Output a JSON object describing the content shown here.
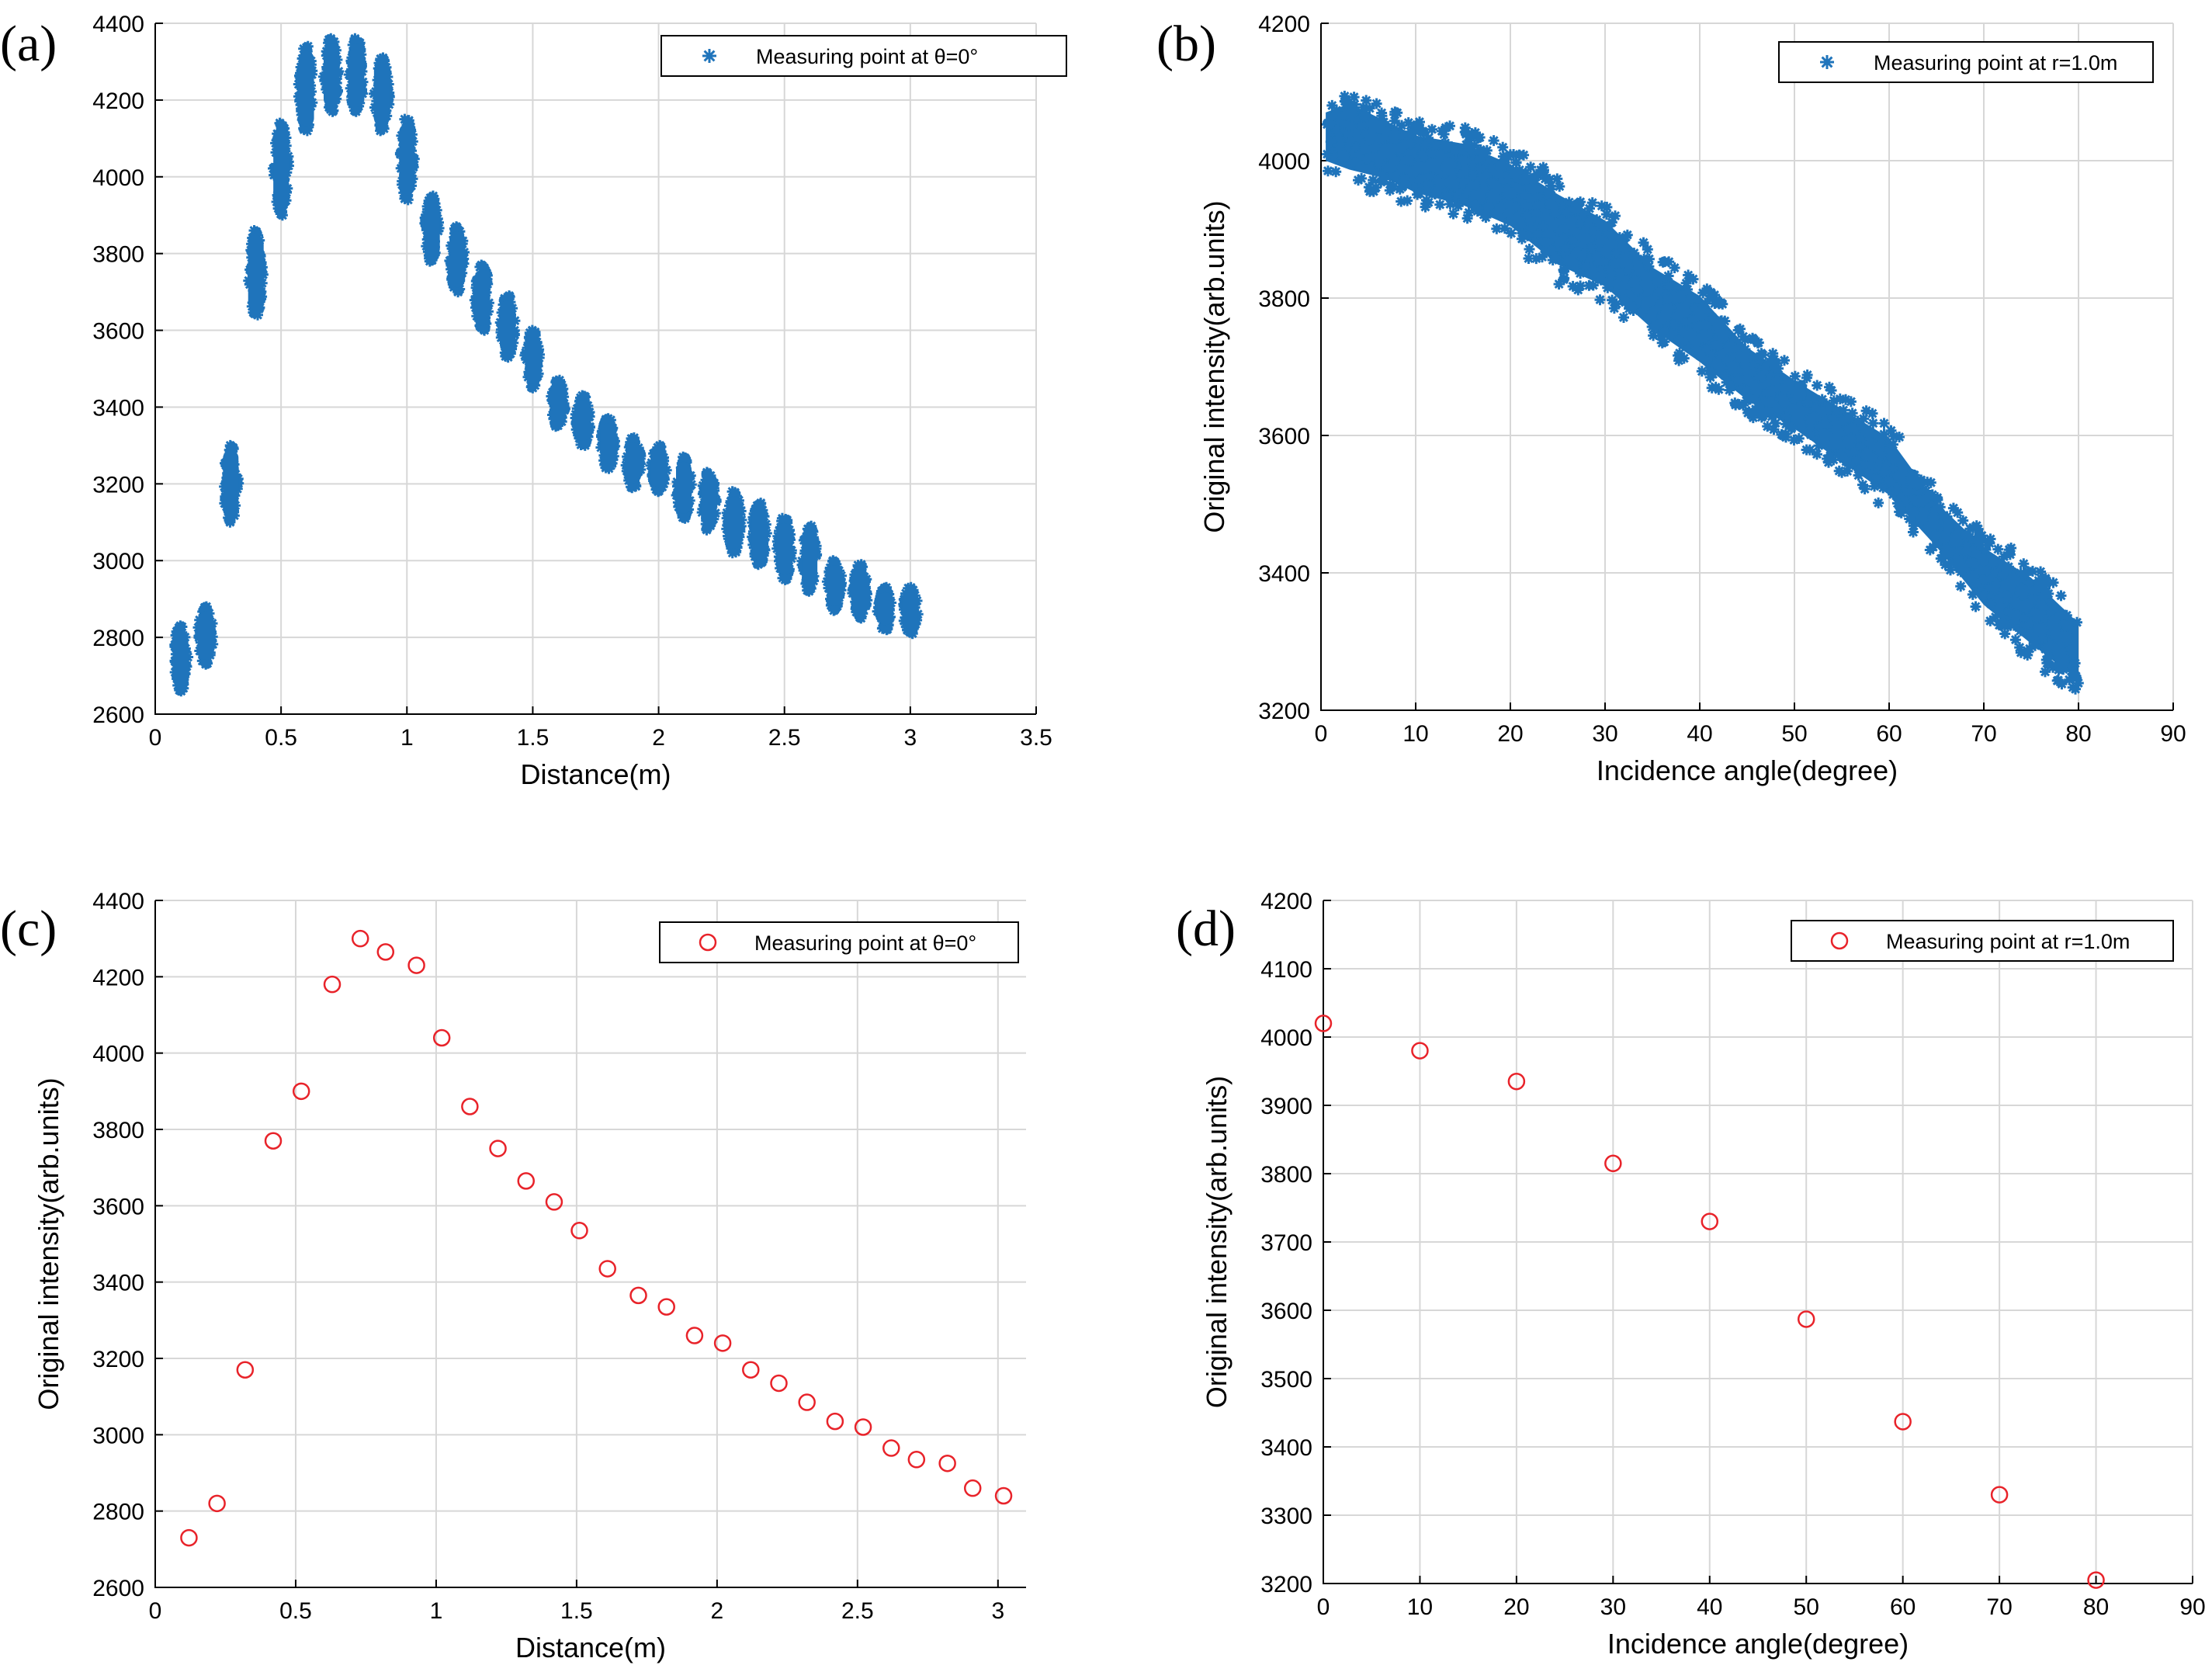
{
  "colors": {
    "blue_series": "#1f74bb",
    "red_series": "#e8232a",
    "grid": "#d7d7d7",
    "axis": "#000000"
  },
  "chart_data": [
    {
      "id": "a",
      "panel_label": "(a)",
      "type": "scatter",
      "marker": "asterisk-cluster",
      "title": "",
      "xlabel": "Distance(m)",
      "ylabel": "",
      "xlim": [
        0,
        3.5
      ],
      "ylim": [
        2600,
        4400
      ],
      "xticks": [
        0,
        0.5,
        1,
        1.5,
        2,
        2.5,
        3,
        3.5
      ],
      "xtick_labels": [
        "0",
        "0.5",
        "1",
        "1.5",
        "2",
        "2.5",
        "3",
        "3.5"
      ],
      "yticks": [
        2600,
        2800,
        3000,
        3200,
        3400,
        3600,
        3800,
        4000,
        4200,
        4400
      ],
      "ytick_labels": [
        "2600",
        "2800",
        "3000",
        "3200",
        "3400",
        "3600",
        "3800",
        "4000",
        "4200",
        "4400"
      ],
      "grid": true,
      "legend": {
        "label": "Measuring point at θ=0°",
        "placement": "top-right"
      },
      "series": [
        {
          "name": "Measuring point at θ=0°",
          "clusters": [
            {
              "x": 0.1,
              "y_min": 2660,
              "y_max": 2830
            },
            {
              "x": 0.2,
              "y_min": 2730,
              "y_max": 2880
            },
            {
              "x": 0.3,
              "y_min": 3100,
              "y_max": 3300
            },
            {
              "x": 0.4,
              "y_min": 3640,
              "y_max": 3860
            },
            {
              "x": 0.5,
              "y_min": 3900,
              "y_max": 4140
            },
            {
              "x": 0.6,
              "y_min": 4120,
              "y_max": 4340
            },
            {
              "x": 0.7,
              "y_min": 4170,
              "y_max": 4360
            },
            {
              "x": 0.8,
              "y_min": 4170,
              "y_max": 4360
            },
            {
              "x": 0.9,
              "y_min": 4120,
              "y_max": 4310
            },
            {
              "x": 1.0,
              "y_min": 3940,
              "y_max": 4150
            },
            {
              "x": 1.1,
              "y_min": 3780,
              "y_max": 3950
            },
            {
              "x": 1.2,
              "y_min": 3700,
              "y_max": 3870
            },
            {
              "x": 1.3,
              "y_min": 3600,
              "y_max": 3770
            },
            {
              "x": 1.4,
              "y_min": 3530,
              "y_max": 3690
            },
            {
              "x": 1.5,
              "y_min": 3450,
              "y_max": 3600
            },
            {
              "x": 1.6,
              "y_min": 3350,
              "y_max": 3470
            },
            {
              "x": 1.7,
              "y_min": 3300,
              "y_max": 3430
            },
            {
              "x": 1.8,
              "y_min": 3240,
              "y_max": 3370
            },
            {
              "x": 1.9,
              "y_min": 3190,
              "y_max": 3320
            },
            {
              "x": 2.0,
              "y_min": 3180,
              "y_max": 3300
            },
            {
              "x": 2.1,
              "y_min": 3110,
              "y_max": 3270
            },
            {
              "x": 2.2,
              "y_min": 3080,
              "y_max": 3230
            },
            {
              "x": 2.3,
              "y_min": 3020,
              "y_max": 3180
            },
            {
              "x": 2.4,
              "y_min": 2990,
              "y_max": 3150
            },
            {
              "x": 2.5,
              "y_min": 2950,
              "y_max": 3110
            },
            {
              "x": 2.6,
              "y_min": 2920,
              "y_max": 3090
            },
            {
              "x": 2.7,
              "y_min": 2870,
              "y_max": 3000
            },
            {
              "x": 2.8,
              "y_min": 2850,
              "y_max": 2990
            },
            {
              "x": 2.9,
              "y_min": 2820,
              "y_max": 2930
            },
            {
              "x": 3.0,
              "y_min": 2810,
              "y_max": 2930
            }
          ]
        }
      ]
    },
    {
      "id": "b",
      "panel_label": "(b)",
      "type": "scatter",
      "marker": "asterisk-band",
      "title": "",
      "xlabel": "Incidence angle(degree)",
      "ylabel": "Original intensity(arb.units)",
      "xlim": [
        0,
        90
      ],
      "ylim": [
        3200,
        4200
      ],
      "xticks": [
        0,
        10,
        20,
        30,
        40,
        50,
        60,
        70,
        80,
        90
      ],
      "xtick_labels": [
        "0",
        "10",
        "20",
        "30",
        "40",
        "50",
        "60",
        "70",
        "80",
        "90"
      ],
      "yticks": [
        3200,
        3400,
        3600,
        3800,
        4000,
        4200
      ],
      "ytick_labels": [
        "3200",
        "3400",
        "3600",
        "3800",
        "4000",
        "4200"
      ],
      "grid": true,
      "legend": {
        "label": "Measuring point at r=1.0m",
        "placement": "top-right"
      },
      "series": [
        {
          "name": "Measuring point at r=1.0m",
          "band": [
            {
              "x": 0.5,
              "y_min": 3980,
              "y_max": 4090
            },
            {
              "x": 3,
              "y_min": 3960,
              "y_max": 4110
            },
            {
              "x": 7,
              "y_min": 3950,
              "y_max": 4080
            },
            {
              "x": 10,
              "y_min": 3930,
              "y_max": 4060
            },
            {
              "x": 15,
              "y_min": 3910,
              "y_max": 4050
            },
            {
              "x": 20,
              "y_min": 3880,
              "y_max": 4020
            },
            {
              "x": 25,
              "y_min": 3820,
              "y_max": 3980
            },
            {
              "x": 30,
              "y_min": 3790,
              "y_max": 3940
            },
            {
              "x": 35,
              "y_min": 3730,
              "y_max": 3870
            },
            {
              "x": 40,
              "y_min": 3680,
              "y_max": 3830
            },
            {
              "x": 45,
              "y_min": 3630,
              "y_max": 3750
            },
            {
              "x": 50,
              "y_min": 3590,
              "y_max": 3700
            },
            {
              "x": 55,
              "y_min": 3540,
              "y_max": 3660
            },
            {
              "x": 60,
              "y_min": 3490,
              "y_max": 3620
            },
            {
              "x": 65,
              "y_min": 3420,
              "y_max": 3520
            },
            {
              "x": 70,
              "y_min": 3330,
              "y_max": 3460
            },
            {
              "x": 75,
              "y_min": 3270,
              "y_max": 3420
            },
            {
              "x": 80,
              "y_min": 3220,
              "y_max": 3350
            }
          ]
        }
      ]
    },
    {
      "id": "c",
      "panel_label": "(c)",
      "type": "scatter",
      "marker": "circle",
      "title": "",
      "xlabel": "Distance(m)",
      "ylabel": "Original intensity(arb.units)",
      "xlim": [
        0,
        3.1
      ],
      "ylim": [
        2600,
        4400
      ],
      "xticks": [
        0,
        0.5,
        1,
        1.5,
        2,
        2.5,
        3
      ],
      "xtick_labels": [
        "0",
        "0.5",
        "1",
        "1.5",
        "2",
        "2.5",
        "3"
      ],
      "yticks": [
        2600,
        2800,
        3000,
        3200,
        3400,
        3600,
        3800,
        4000,
        4200,
        4400
      ],
      "ytick_labels": [
        "2600",
        "2800",
        "3000",
        "3200",
        "3400",
        "3600",
        "3800",
        "4000",
        "4200",
        "4400"
      ],
      "grid": true,
      "legend": {
        "label": "Measuring point at θ=0°",
        "placement": "top-right"
      },
      "series": [
        {
          "name": "Measuring point at θ=0°",
          "x": [
            0.12,
            0.22,
            0.32,
            0.42,
            0.52,
            0.63,
            0.73,
            0.82,
            0.93,
            1.02,
            1.12,
            1.22,
            1.32,
            1.42,
            1.51,
            1.61,
            1.72,
            1.82,
            1.92,
            2.02,
            2.12,
            2.22,
            2.32,
            2.42,
            2.52,
            2.62,
            2.71,
            2.82,
            2.91,
            3.02
          ],
          "y": [
            2730,
            2820,
            3170,
            3770,
            3900,
            4180,
            4300,
            4265,
            4230,
            4040,
            3860,
            3750,
            3665,
            3610,
            3535,
            3435,
            3365,
            3335,
            3260,
            3240,
            3170,
            3135,
            3085,
            3035,
            3020,
            2965,
            2935,
            2925,
            2860,
            2840
          ]
        }
      ]
    },
    {
      "id": "d",
      "panel_label": "(d)",
      "type": "scatter",
      "marker": "circle",
      "title": "",
      "xlabel": "Incidence angle(degree)",
      "ylabel": "Original intensity(arb.units)",
      "xlim": [
        0,
        90
      ],
      "ylim": [
        3200,
        4200
      ],
      "xticks": [
        0,
        10,
        20,
        30,
        40,
        50,
        60,
        70,
        80,
        90
      ],
      "xtick_labels": [
        "0",
        "10",
        "20",
        "30",
        "40",
        "50",
        "60",
        "70",
        "80",
        "90"
      ],
      "yticks": [
        3200,
        3300,
        3400,
        3500,
        3600,
        3700,
        3800,
        3900,
        4000,
        4100,
        4200
      ],
      "ytick_labels": [
        "3200",
        "3300",
        "3400",
        "3500",
        "3600",
        "3700",
        "3800",
        "3900",
        "4000",
        "4100",
        "4200"
      ],
      "grid": true,
      "legend": {
        "label": "Measuring point at r=1.0m",
        "placement": "top-right"
      },
      "series": [
        {
          "name": "Measuring point at r=1.0m",
          "x": [
            0,
            10,
            20,
            30,
            40,
            50,
            60,
            70,
            80
          ],
          "y": [
            4020,
            3980,
            3935,
            3815,
            3730,
            3587,
            3437,
            3330,
            3205
          ]
        }
      ]
    }
  ]
}
